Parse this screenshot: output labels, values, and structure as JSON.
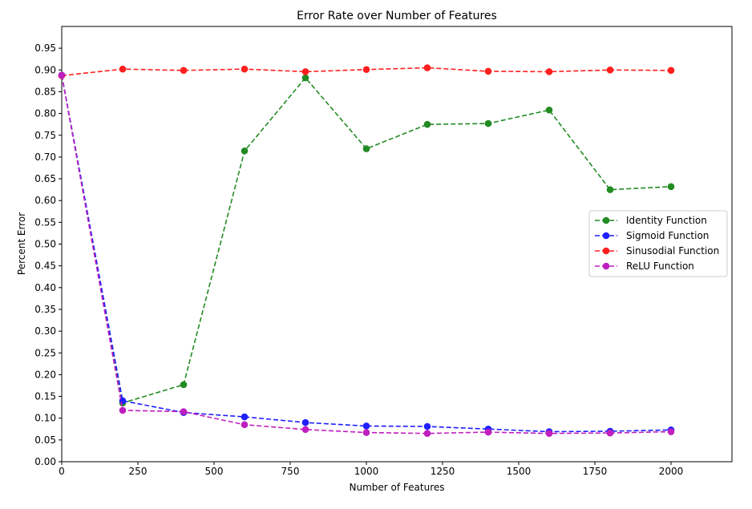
{
  "chart_data": {
    "type": "line",
    "title": "Error Rate over Number of Features",
    "xlabel": "Number of Features",
    "ylabel": "Percent Error",
    "xlim": [
      0,
      2200
    ],
    "ylim": [
      0.0,
      1.0
    ],
    "x_ticks": [
      0,
      250,
      500,
      750,
      1000,
      1250,
      1500,
      1750,
      2000
    ],
    "x_tick_labels": [
      "0",
      "250",
      "500",
      "750",
      "1000",
      "1250",
      "1500",
      "1750",
      "2000"
    ],
    "y_ticks": [
      0.0,
      0.05,
      0.1,
      0.15,
      0.2,
      0.25,
      0.3,
      0.35,
      0.4,
      0.45,
      0.5,
      0.55,
      0.6,
      0.65,
      0.7,
      0.75,
      0.8,
      0.85,
      0.9,
      0.95
    ],
    "y_tick_labels": [
      "0.00",
      "0.05",
      "0.10",
      "0.15",
      "0.20",
      "0.25",
      "0.30",
      "0.35",
      "0.40",
      "0.45",
      "0.50",
      "0.55",
      "0.60",
      "0.65",
      "0.70",
      "0.75",
      "0.80",
      "0.85",
      "0.90",
      "0.95"
    ],
    "grid": false,
    "legend_position": "center-right",
    "x": [
      0,
      200,
      400,
      600,
      800,
      1000,
      1200,
      1400,
      1600,
      1800,
      2000
    ],
    "series": [
      {
        "name": "Identity Function",
        "color": "#228b22",
        "values": [
          0.888,
          0.135,
          0.177,
          0.714,
          0.882,
          0.719,
          0.775,
          0.777,
          0.808,
          0.625,
          0.632
        ]
      },
      {
        "name": "Sigmoid Function",
        "color": "#1f1fff",
        "values": [
          0.888,
          0.14,
          0.113,
          0.103,
          0.09,
          0.082,
          0.081,
          0.075,
          0.069,
          0.07,
          0.073
        ]
      },
      {
        "name": "Sinusodial Function",
        "color": "#ff1f1f",
        "values": [
          0.887,
          0.902,
          0.899,
          0.902,
          0.896,
          0.901,
          0.905,
          0.897,
          0.896,
          0.9,
          0.899
        ]
      },
      {
        "name": "ReLU Function",
        "color": "#bf1fbf",
        "values": [
          0.888,
          0.118,
          0.115,
          0.085,
          0.074,
          0.067,
          0.065,
          0.068,
          0.065,
          0.066,
          0.069
        ]
      }
    ]
  }
}
